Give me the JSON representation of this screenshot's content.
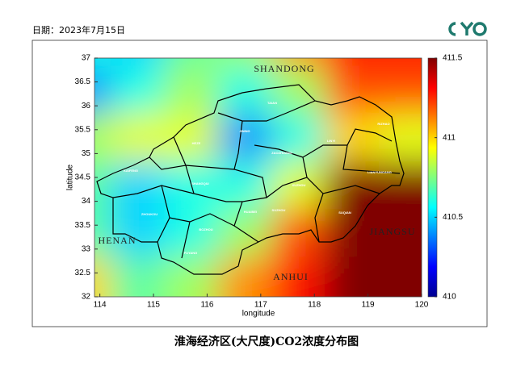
{
  "date": "日期：2023年7月15日",
  "chart_data": {
    "type": "heatmap",
    "title": "淮海经济区(大尺度)CO2浓度分布图",
    "xlabel": "longitude",
    "ylabel": "latitude",
    "x": [
      114,
      115,
      116,
      117,
      118,
      119,
      120
    ],
    "y": [
      37,
      36,
      35,
      34,
      33,
      32
    ],
    "values": [
      [
        410.6,
        410.5,
        410.7,
        410.8,
        411.1,
        411.3,
        411.3
      ],
      [
        410.4,
        410.6,
        410.8,
        410.6,
        410.8,
        411.2,
        411.2
      ],
      [
        410.8,
        410.9,
        410.9,
        410.4,
        410.6,
        411.0,
        410.9
      ],
      [
        410.7,
        410.5,
        410.6,
        410.6,
        410.9,
        411.5,
        411.5
      ],
      [
        410.7,
        410.5,
        410.6,
        410.8,
        411.2,
        411.5,
        411.5
      ],
      [
        411.0,
        410.7,
        410.8,
        411.1,
        411.3,
        411.5,
        411.5
      ]
    ],
    "xlim": [
      113.9,
      120
    ],
    "ylim": [
      32,
      37
    ],
    "xticks": [
      114,
      115,
      116,
      117,
      118,
      119,
      120
    ],
    "yticks": [
      32,
      32.5,
      33,
      33.5,
      34,
      34.5,
      35,
      35.5,
      36,
      36.5,
      37
    ],
    "clim": [
      410,
      411.5
    ],
    "cticks": [
      410,
      410.5,
      411,
      411.5
    ],
    "colormap": "jet",
    "provinces": [
      "SHANDONG",
      "HENAN",
      "ANHUI",
      "JIANGSU"
    ],
    "cities": [
      "TAIAN",
      "JINING",
      "HEZE",
      "ZAOZHUANG",
      "LINYI",
      "RIZHAO",
      "LIANYUNGANG",
      "XUZHOU",
      "SUQIAN",
      "KAIFENG",
      "SHANGQIU",
      "HUAIBEI",
      "SUZHOU",
      "ZHOUKOU",
      "BOZHOU",
      "FUYANG"
    ]
  }
}
